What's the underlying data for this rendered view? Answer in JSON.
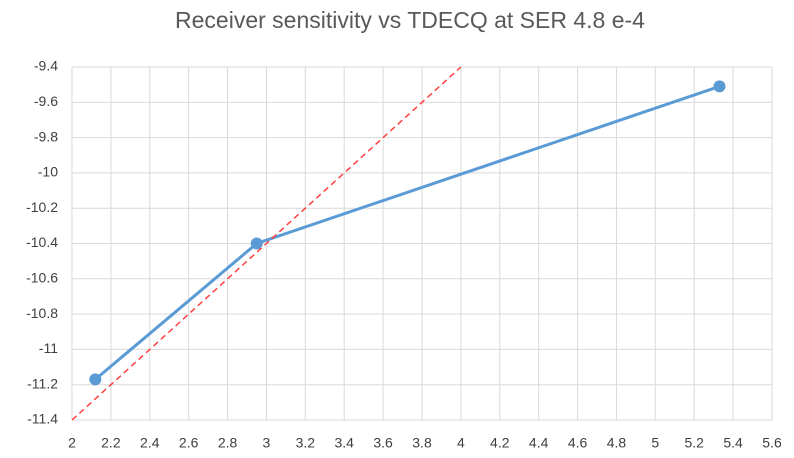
{
  "chart_data": {
    "type": "line",
    "title": "Receiver sensitivity vs TDECQ at SER 4.8 e-4",
    "series": [
      {
        "color": "#5b9bd5",
        "x": [
          2.12,
          2.95,
          5.33
        ],
        "values": [
          -11.17,
          -10.4,
          -9.51
        ],
        "markers": true,
        "dashed": false
      },
      {
        "color": "#ff4040",
        "x": [
          2,
          4
        ],
        "values": [
          -11.4,
          -9.4
        ],
        "markers": false,
        "dashed": true
      }
    ],
    "xlim": [
      2,
      5.6
    ],
    "xticks": [
      2,
      2.2,
      2.4,
      2.6,
      2.8,
      3,
      3.2,
      3.4,
      3.6,
      3.8,
      4,
      4.2,
      4.4,
      4.6,
      4.8,
      5,
      5.2,
      5.4,
      5.6
    ],
    "ylim": [
      -11.4,
      -9.4
    ],
    "yticks": [
      -9.4,
      -9.6,
      -9.8,
      -10,
      -10.2,
      -10.4,
      -10.6,
      -10.8,
      -11,
      -11.2,
      -11.4
    ],
    "grid": true
  }
}
